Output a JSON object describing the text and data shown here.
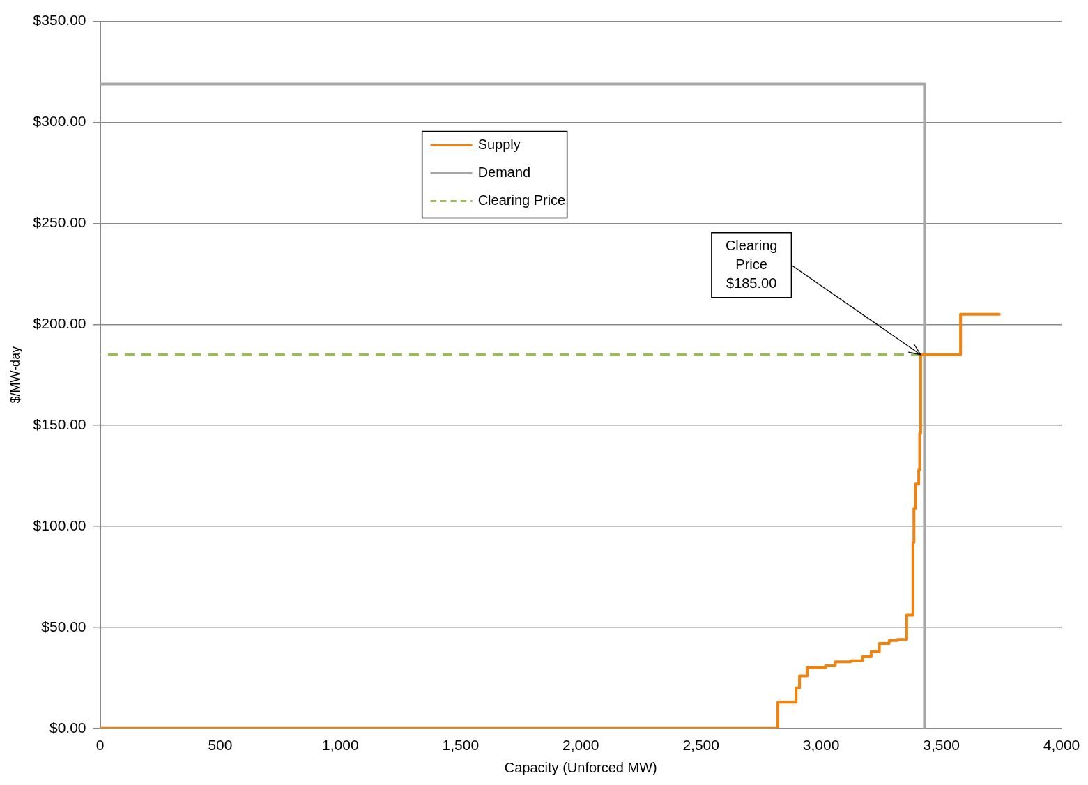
{
  "chart_data": {
    "type": "step",
    "xlabel": "Capacity (Unforced MW)",
    "ylabel": "$/MW-day",
    "xlim": [
      0,
      4000
    ],
    "xticks": [
      0,
      500,
      {
        "value": 1000,
        "label": "1,000"
      },
      {
        "value": 1500,
        "label": "1,500"
      },
      {
        "value": 2000,
        "label": "2,000"
      },
      {
        "value": 2500,
        "label": "2,500"
      },
      {
        "value": 3000,
        "label": "3,000"
      },
      {
        "value": 3500,
        "label": "3,500"
      },
      {
        "value": 4000,
        "label": "4,000"
      }
    ],
    "ylim": [
      0,
      350
    ],
    "yticks": [
      {
        "value": 0,
        "label": "$0.00"
      },
      {
        "value": 50,
        "label": "$50.00"
      },
      {
        "value": 100,
        "label": "$100.00"
      },
      {
        "value": 150,
        "label": "$150.00"
      },
      {
        "value": 200,
        "label": "$200.00"
      },
      {
        "value": 250,
        "label": "$250.00"
      },
      {
        "value": 300,
        "label": "$300.00"
      },
      {
        "value": 350,
        "label": "$350.00"
      }
    ],
    "grid": "y",
    "legend": "top",
    "marker": "none",
    "series": [
      {
        "name": "Supply",
        "color": "#f0820f",
        "x": [
          0,
          2820,
          2896,
          2910,
          2942,
          3018,
          3059,
          3123,
          3172,
          3208,
          3242,
          3283,
          3318,
          3356,
          3382,
          3386,
          3393,
          3406,
          3410,
          3414,
          3580,
          3746
        ],
        "values": [
          0,
          13,
          20,
          26,
          30,
          31,
          33,
          33.5,
          35.5,
          38,
          42,
          43.5,
          44,
          56,
          92,
          109,
          121,
          128,
          146,
          185,
          205,
          205
        ]
      },
      {
        "name": "Demand",
        "type": "line",
        "color": "#a6a6a6",
        "x": [
          0,
          3430,
          3430
        ],
        "values": [
          319,
          319,
          0
        ]
      },
      {
        "name": "Clearing Price",
        "type": "line",
        "line_style": "dashed",
        "color": "#9bbb59",
        "x": [
          0,
          3414
        ],
        "values": [
          185,
          185
        ]
      }
    ],
    "annotations": [
      {
        "text": "Clearing\nPrice\n$185.00",
        "x": 3414,
        "y": 185
      }
    ]
  }
}
